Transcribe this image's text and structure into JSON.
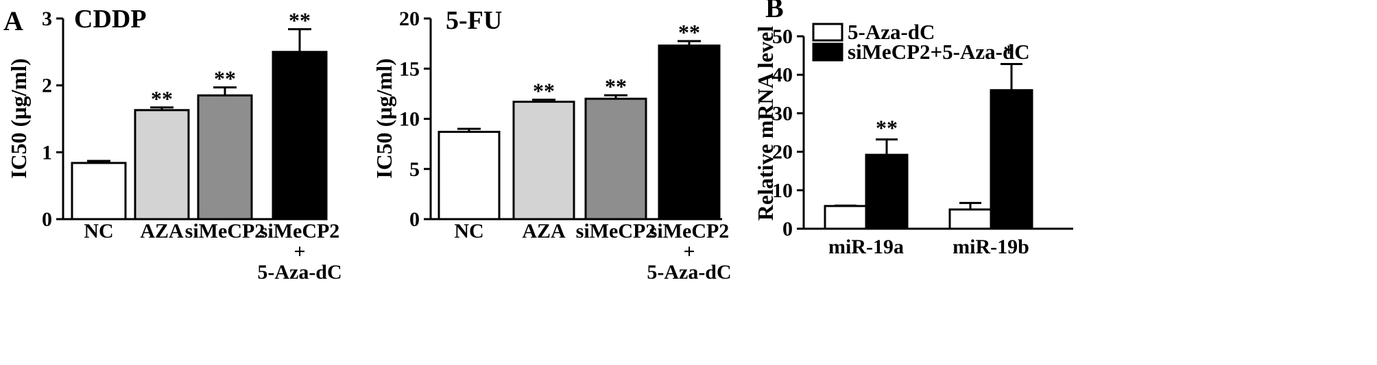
{
  "figure": {
    "panel_labels": [
      "A",
      "B"
    ]
  },
  "chart_data": [
    {
      "type": "bar",
      "panel": "A",
      "title": "CDDP",
      "ylabel": "IC50 (µg/ml)",
      "ylim": [
        0,
        3
      ],
      "yticks": [
        "0",
        "1",
        "2",
        "3"
      ],
      "categories": [
        [
          "NC"
        ],
        [
          "AZA"
        ],
        [
          "siMeCP2"
        ],
        [
          "siMeCP2",
          "+",
          "5-Aza-dC"
        ]
      ],
      "values": [
        0.84,
        1.63,
        1.85,
        2.5
      ],
      "errors": [
        0.03,
        0.04,
        0.12,
        0.34
      ],
      "significance": [
        "",
        "**",
        "**",
        "**"
      ],
      "colors": [
        "#ffffff",
        "#d3d3d3",
        "#8e8e8e",
        "#000000"
      ],
      "legend": "none",
      "grid": false
    },
    {
      "type": "bar",
      "panel": "",
      "title": "5-FU",
      "ylabel": "IC50 (µg/ml)",
      "ylim": [
        0,
        20
      ],
      "yticks": [
        "0",
        "5",
        "10",
        "15",
        "20"
      ],
      "categories": [
        [
          "NC"
        ],
        [
          "AZA"
        ],
        [
          "siMeCP2"
        ],
        [
          "siMeCP2",
          "+",
          "5-Aza-dC"
        ]
      ],
      "values": [
        8.7,
        11.7,
        12.0,
        17.3
      ],
      "errors": [
        0.3,
        0.2,
        0.35,
        0.45
      ],
      "significance": [
        "",
        "**",
        "**",
        "**"
      ],
      "colors": [
        "#ffffff",
        "#d3d3d3",
        "#8e8e8e",
        "#000000"
      ],
      "legend": "none",
      "grid": false
    },
    {
      "type": "bar",
      "panel": "B",
      "title": "",
      "ylabel": "Relative mRNA level",
      "ylim": [
        0,
        50
      ],
      "yticks": [
        "0",
        "10",
        "20",
        "30",
        "40",
        "50"
      ],
      "categories": [
        "miR-19a",
        "miR-19b"
      ],
      "series": [
        {
          "name": "5-Aza-dC",
          "color": "#ffffff",
          "values": [
            5.9,
            5.0
          ],
          "errors": [
            0.1,
            1.7
          ]
        },
        {
          "name": "siMeCP2+5-Aza-dC",
          "color": "#000000",
          "values": [
            19.2,
            36.0
          ],
          "errors": [
            4.0,
            6.8
          ]
        }
      ],
      "significance": [
        "**",
        "*"
      ],
      "legend": "top-left",
      "grid": false
    }
  ]
}
